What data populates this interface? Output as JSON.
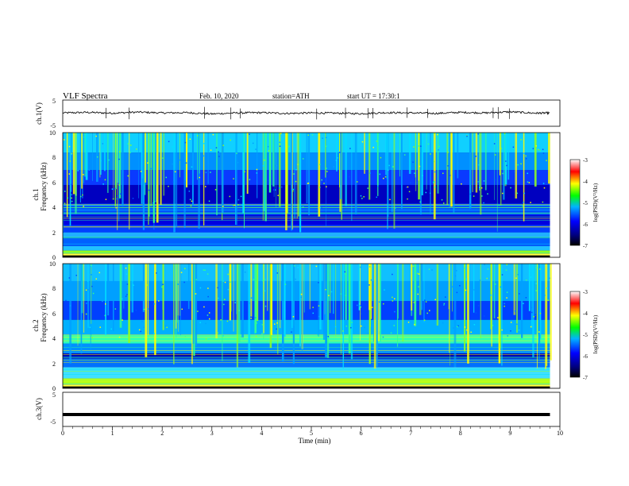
{
  "header": {
    "title": "VLF Spectra",
    "date": "Feb. 10, 2020",
    "station": "station=ATH",
    "start": "start UT = 17:30:1"
  },
  "chart_data": [
    {
      "type": "line",
      "panel": "ch1-waveform",
      "ylabel": "ch.1(V)",
      "ylim": [
        -5,
        5
      ],
      "yticks": [
        "5",
        "-5"
      ],
      "x": [
        0,
        0.5,
        1,
        1.5,
        2,
        2.5,
        3,
        3.5,
        4,
        4.5,
        5,
        5.5,
        6,
        6.5,
        7,
        7.5,
        8,
        8.5,
        9,
        9.5,
        9.8
      ],
      "series": [
        {
          "values": [
            0.1,
            0.3,
            0.0,
            0.4,
            0.1,
            0.2,
            -0.3,
            0.1,
            0.2,
            -0.1,
            0.1,
            0.0,
            -0.2,
            0.2,
            0.1,
            -0.1,
            0.3,
            0.1,
            0.5,
            0.0,
            0.1
          ]
        }
      ],
      "color": "#111111"
    },
    {
      "type": "heatmap",
      "panel": "ch1-spectrogram",
      "ylabel": "ch.1\nFrequency (kHz)",
      "ylabel_line1": "ch.1",
      "ylabel_line2": "Frequency (kHz)",
      "ylim": [
        0,
        10
      ],
      "yticks": [
        "0",
        "2",
        "4",
        "6",
        "8",
        "10"
      ],
      "colorbar": {
        "label": "log(PSD)(V²/Hz)",
        "range": [
          -7,
          -3
        ],
        "ticks": [
          "-3",
          "-4",
          "-5",
          "-6",
          "-7"
        ]
      }
    },
    {
      "type": "heatmap",
      "panel": "ch2-spectrogram",
      "ylabel_line1": "ch.2",
      "ylabel_line2": "Frequency (kHz)",
      "ylim": [
        0,
        10
      ],
      "yticks": [
        "0",
        "2",
        "4",
        "6",
        "8",
        "10"
      ],
      "colorbar": {
        "label": "log(PSD)(V²/Hz)",
        "range": [
          -7,
          -3
        ],
        "ticks": [
          "-3",
          "-4",
          "-5",
          "-6",
          "-7"
        ]
      }
    },
    {
      "type": "line",
      "panel": "ch3-waveform",
      "ylabel": "ch.3(V)",
      "ylim": [
        -5,
        5
      ],
      "yticks": [
        "5",
        "-5"
      ],
      "x": [
        0,
        9.8
      ],
      "series": [
        {
          "values": [
            -1.5,
            -1.5
          ]
        }
      ],
      "color": "#000000"
    }
  ],
  "x_axis": {
    "label": "Time (min)",
    "range": [
      0,
      10
    ],
    "ticks": [
      "0",
      "1",
      "2",
      "3",
      "4",
      "5",
      "6",
      "7",
      "8",
      "9",
      "10"
    ]
  },
  "colors": {
    "background": "#ffffff",
    "colormap": [
      "#000000",
      "#00007f",
      "#0000ff",
      "#00b4ff",
      "#00ff00",
      "#ffff00",
      "#ff0000",
      "#ffffff"
    ]
  }
}
